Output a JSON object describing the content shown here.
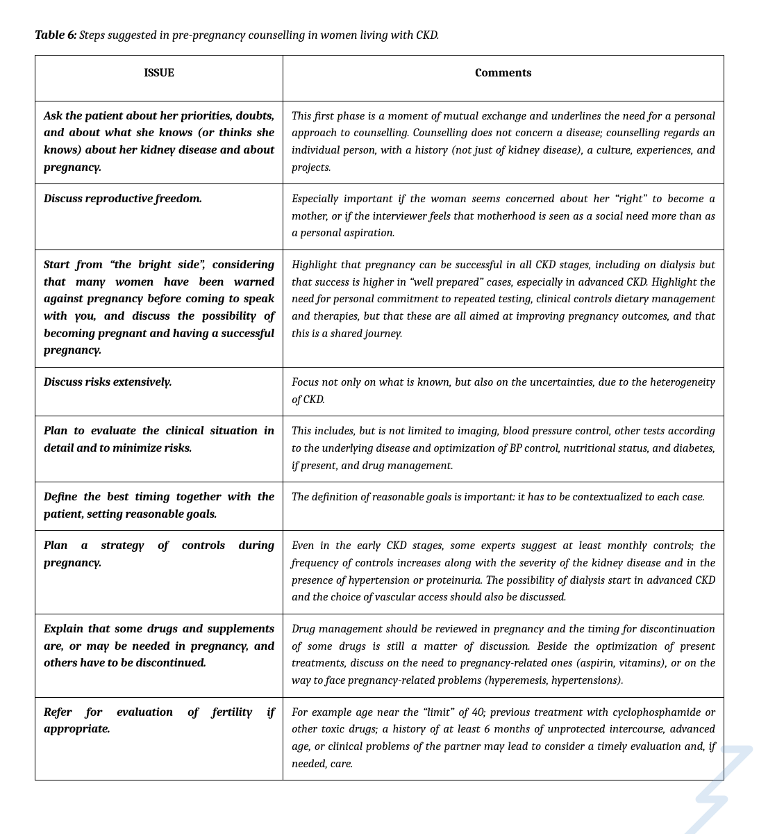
{
  "caption": {
    "label": "Table 6:",
    "text": " Steps suggested in pre-pregnancy counselling in women living with CKD."
  },
  "headers": {
    "issue": "ISSUE",
    "comments": "Comments"
  },
  "rows": [
    {
      "issue": "Ask the patient about her priorities, doubts, and about what she knows (or thinks she knows) about her kidney disease and about pregnancy.",
      "comments": "This first phase is a moment of mutual exchange and underlines the need for a personal approach to counselling. Counselling does not concern a disease; counselling regards an individual person, with a history (not just of kidney disease), a culture, experiences, and projects."
    },
    {
      "issue": "Discuss reproductive freedom.",
      "comments": "Especially important if the woman seems concerned about her “right” to become a mother, or if the interviewer feels that motherhood is seen as a social need more than as a personal aspiration."
    },
    {
      "issue": "Start from “the bright side”, considering that many women have been warned against pregnancy before coming to speak with you, and discuss the possibility of becoming pregnant and having a successful pregnancy.",
      "comments": "Highlight that pregnancy can be successful in all CKD stages, including on dialysis but that success is higher in “well prepared” cases, especially in advanced CKD. Highlight the need for personal commitment to repeated testing, clinical controls dietary management and therapies, but that these are all aimed at improving pregnancy outcomes, and that this is a shared journey."
    },
    {
      "issue": "Discuss risks extensively.",
      "comments": "Focus not only on what is known, but also on the uncertainties, due to the heterogeneity of CKD."
    },
    {
      "issue": "Plan to evaluate the clinical situation in detail and to minimize risks.",
      "comments": "This includes, but is not limited to imaging, blood pressure control, other tests according to the underlying disease and optimization of BP control, nutritional status,  and diabetes, if present, and drug management."
    },
    {
      "issue": "Define the best timing together with the patient, setting reasonable goals.",
      "comments": "The definition of reasonable goals is important: it has to be contextualized to each case."
    },
    {
      "issue": "Plan a strategy of controls during pregnancy.",
      "comments": "Even in the early CKD stages, some experts suggest at least monthly controls; the frequency of controls increases along with the severity of the kidney disease and in the presence of hypertension or proteinuria. The possibility of dialysis start in advanced CKD and the choice of vascular access should also be discussed."
    },
    {
      "issue": "Explain that some drugs and supplements are, or may be needed in pregnancy, and others have to be discontinued.",
      "comments": "Drug management should be reviewed in pregnancy and the timing for discontinuation of some drugs is still a matter of discussion. Beside the optimization of present treatments, discuss on the need to pregnancy-related ones (aspirin, vitamins), or on the way to face pregnancy-related problems (hyperemesis, hypertensions)."
    },
    {
      "issue": "Refer for evaluation of fertility if appropriate.",
      "comments": "For example age near the “limit” of 40; previous treatment with cyclophosphamide or other toxic drugs; a history of at least 6 months of unprotected intercourse, advanced age, or clinical problems of the partner may lead to consider a timely evaluation and, if needed, care."
    }
  ]
}
